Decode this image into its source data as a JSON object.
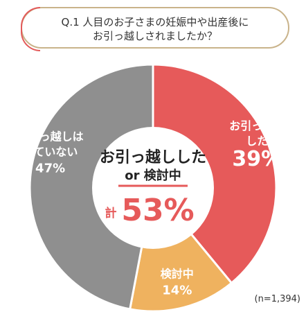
{
  "question": {
    "line1": "Q.1 人目のお子さまの妊娠中や出産後に",
    "line2": "お引っ越しされましたか？"
  },
  "center": {
    "line1": "お引っ越しした",
    "line2": "or 検討中",
    "total_prefix": "計",
    "total_value": "53%"
  },
  "sample_note": "(n=1,394)",
  "chart_data": {
    "type": "pie",
    "donut": true,
    "slices": [
      {
        "label_line1": "お引っ越し",
        "label_line2": "した",
        "value": 39,
        "percent_label": "39%",
        "color": "#e65a5a"
      },
      {
        "label_line1": "検討中",
        "label_line2": "",
        "value": 14,
        "percent_label": "14%",
        "color": "#efb25f"
      },
      {
        "label_line1": "お引っ越しは",
        "label_line2": "していない",
        "value": 47,
        "percent_label": "47%",
        "color": "#8f8f8f"
      }
    ],
    "start": "top",
    "direction": "clockwise"
  },
  "colors": {
    "frame": "#c9b38a",
    "accent_red": "#e65a5a",
    "center_underline": "#e65a5a"
  }
}
